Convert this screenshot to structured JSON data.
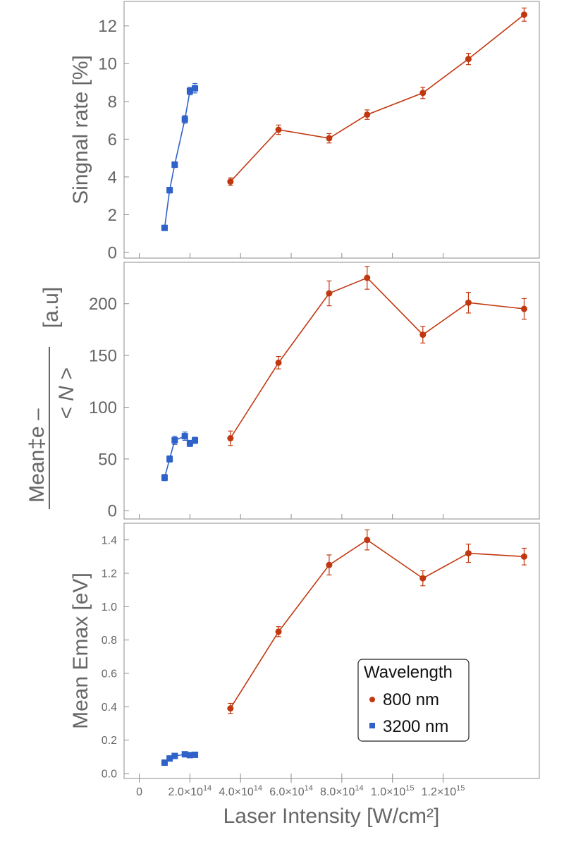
{
  "chart_data": {
    "type": "line",
    "shared_x": {
      "xlabel": "Laser Intensity [W/cm²]",
      "xlim": [
        -60000000000000.0,
        1580000000000000.0
      ],
      "ticks": [
        {
          "value": 0,
          "label": "0"
        },
        {
          "value": 200000000000000.0,
          "label": "2.0×10"
        },
        {
          "value": 400000000000000.0,
          "label": "4.0×10"
        },
        {
          "value": 600000000000000.0,
          "label": "6.0×10"
        },
        {
          "value": 800000000000000.0,
          "label": "8.0×10"
        },
        {
          "value": 1000000000000000.0,
          "label": "1.0×10"
        },
        {
          "value": 1200000000000000.0,
          "label": "1.2×10"
        }
      ],
      "tick_exponents": [
        "",
        "14",
        "14",
        "14",
        "14",
        "15",
        "15"
      ]
    },
    "legend": {
      "title": "Wavelength",
      "placement": "lower-right of bottom panel",
      "entries": [
        {
          "label": "800 nm",
          "color": "#c1370f",
          "marker": "circle"
        },
        {
          "label": "3200 nm",
          "color": "#2f62c9",
          "marker": "square"
        }
      ]
    },
    "panels": [
      {
        "ylabel": "Singnal rate [%]",
        "ylim": [
          -0.3,
          13.3
        ],
        "yticks": [
          0,
          2,
          4,
          6,
          8,
          10,
          12
        ],
        "ytick_labels": [
          "0",
          "2",
          "4",
          "6",
          "8",
          "10",
          "12"
        ],
        "ytick_font": 24,
        "series": [
          {
            "color": "#c1370f",
            "marker": "circle",
            "x": [
              360000000000000.0,
              550000000000000.0,
              750000000000000.0,
              900000000000000.0,
              1120000000000000.0,
              1300000000000000.0,
              1520000000000000.0
            ],
            "y": [
              3.75,
              6.5,
              6.05,
              7.3,
              8.45,
              10.25,
              12.6
            ],
            "err": [
              0.2,
              0.25,
              0.25,
              0.25,
              0.3,
              0.3,
              0.35
            ]
          },
          {
            "color": "#2f62c9",
            "marker": "square",
            "x": [
              100000000000000.0,
              120000000000000.0,
              140000000000000.0,
              180000000000000.0,
              200000000000000.0,
              220000000000000.0
            ],
            "y": [
              1.3,
              3.3,
              4.65,
              7.05,
              8.55,
              8.7
            ],
            "err": [
              0.1,
              0.15,
              0.15,
              0.2,
              0.2,
              0.25
            ]
          }
        ]
      },
      {
        "ylabel_main": "Mean‡e –",
        "ylabel_denom": "< N >",
        "ylabel_unit": "[a.u]",
        "ylim": [
          -8,
          240
        ],
        "yticks": [
          0,
          50,
          100,
          150,
          200
        ],
        "ytick_labels": [
          "0",
          "50",
          "100",
          "150",
          "200"
        ],
        "ytick_font": 24,
        "series": [
          {
            "color": "#c1370f",
            "marker": "circle",
            "x": [
              360000000000000.0,
              550000000000000.0,
              750000000000000.0,
              900000000000000.0,
              1120000000000000.0,
              1300000000000000.0,
              1520000000000000.0
            ],
            "y": [
              70,
              143,
              210,
              225,
              170,
              201,
              195
            ],
            "err": [
              7,
              6,
              12,
              11,
              8,
              10,
              10
            ]
          },
          {
            "color": "#2f62c9",
            "marker": "square",
            "x": [
              100000000000000.0,
              120000000000000.0,
              140000000000000.0,
              180000000000000.0,
              200000000000000.0,
              220000000000000.0
            ],
            "y": [
              32,
              50,
              68,
              72,
              65,
              68
            ],
            "err": [
              3,
              3,
              4,
              4,
              3,
              3
            ]
          }
        ]
      },
      {
        "ylabel": "Mean Emax [eV]",
        "ylim": [
          -0.03,
          1.5
        ],
        "yticks": [
          0.0,
          0.2,
          0.4,
          0.6,
          0.8,
          1.0,
          1.2,
          1.4
        ],
        "ytick_labels": [
          "0.0",
          "0.2",
          "0.4",
          "0.6",
          "0.8",
          "1.0",
          "1.2",
          "1.4"
        ],
        "ytick_font": 16,
        "series": [
          {
            "color": "#c1370f",
            "marker": "circle",
            "x": [
              360000000000000.0,
              550000000000000.0,
              750000000000000.0,
              900000000000000.0,
              1120000000000000.0,
              1300000000000000.0,
              1520000000000000.0
            ],
            "y": [
              0.39,
              0.85,
              1.25,
              1.4,
              1.17,
              1.32,
              1.3
            ],
            "err": [
              0.03,
              0.03,
              0.06,
              0.06,
              0.045,
              0.055,
              0.05
            ]
          },
          {
            "color": "#2f62c9",
            "marker": "square",
            "x": [
              100000000000000.0,
              120000000000000.0,
              140000000000000.0,
              180000000000000.0,
              200000000000000.0,
              220000000000000.0
            ],
            "y": [
              0.065,
              0.09,
              0.105,
              0.115,
              0.11,
              0.112
            ],
            "err": [
              0.005,
              0.005,
              0.005,
              0.005,
              0.005,
              0.005
            ]
          }
        ]
      }
    ]
  }
}
